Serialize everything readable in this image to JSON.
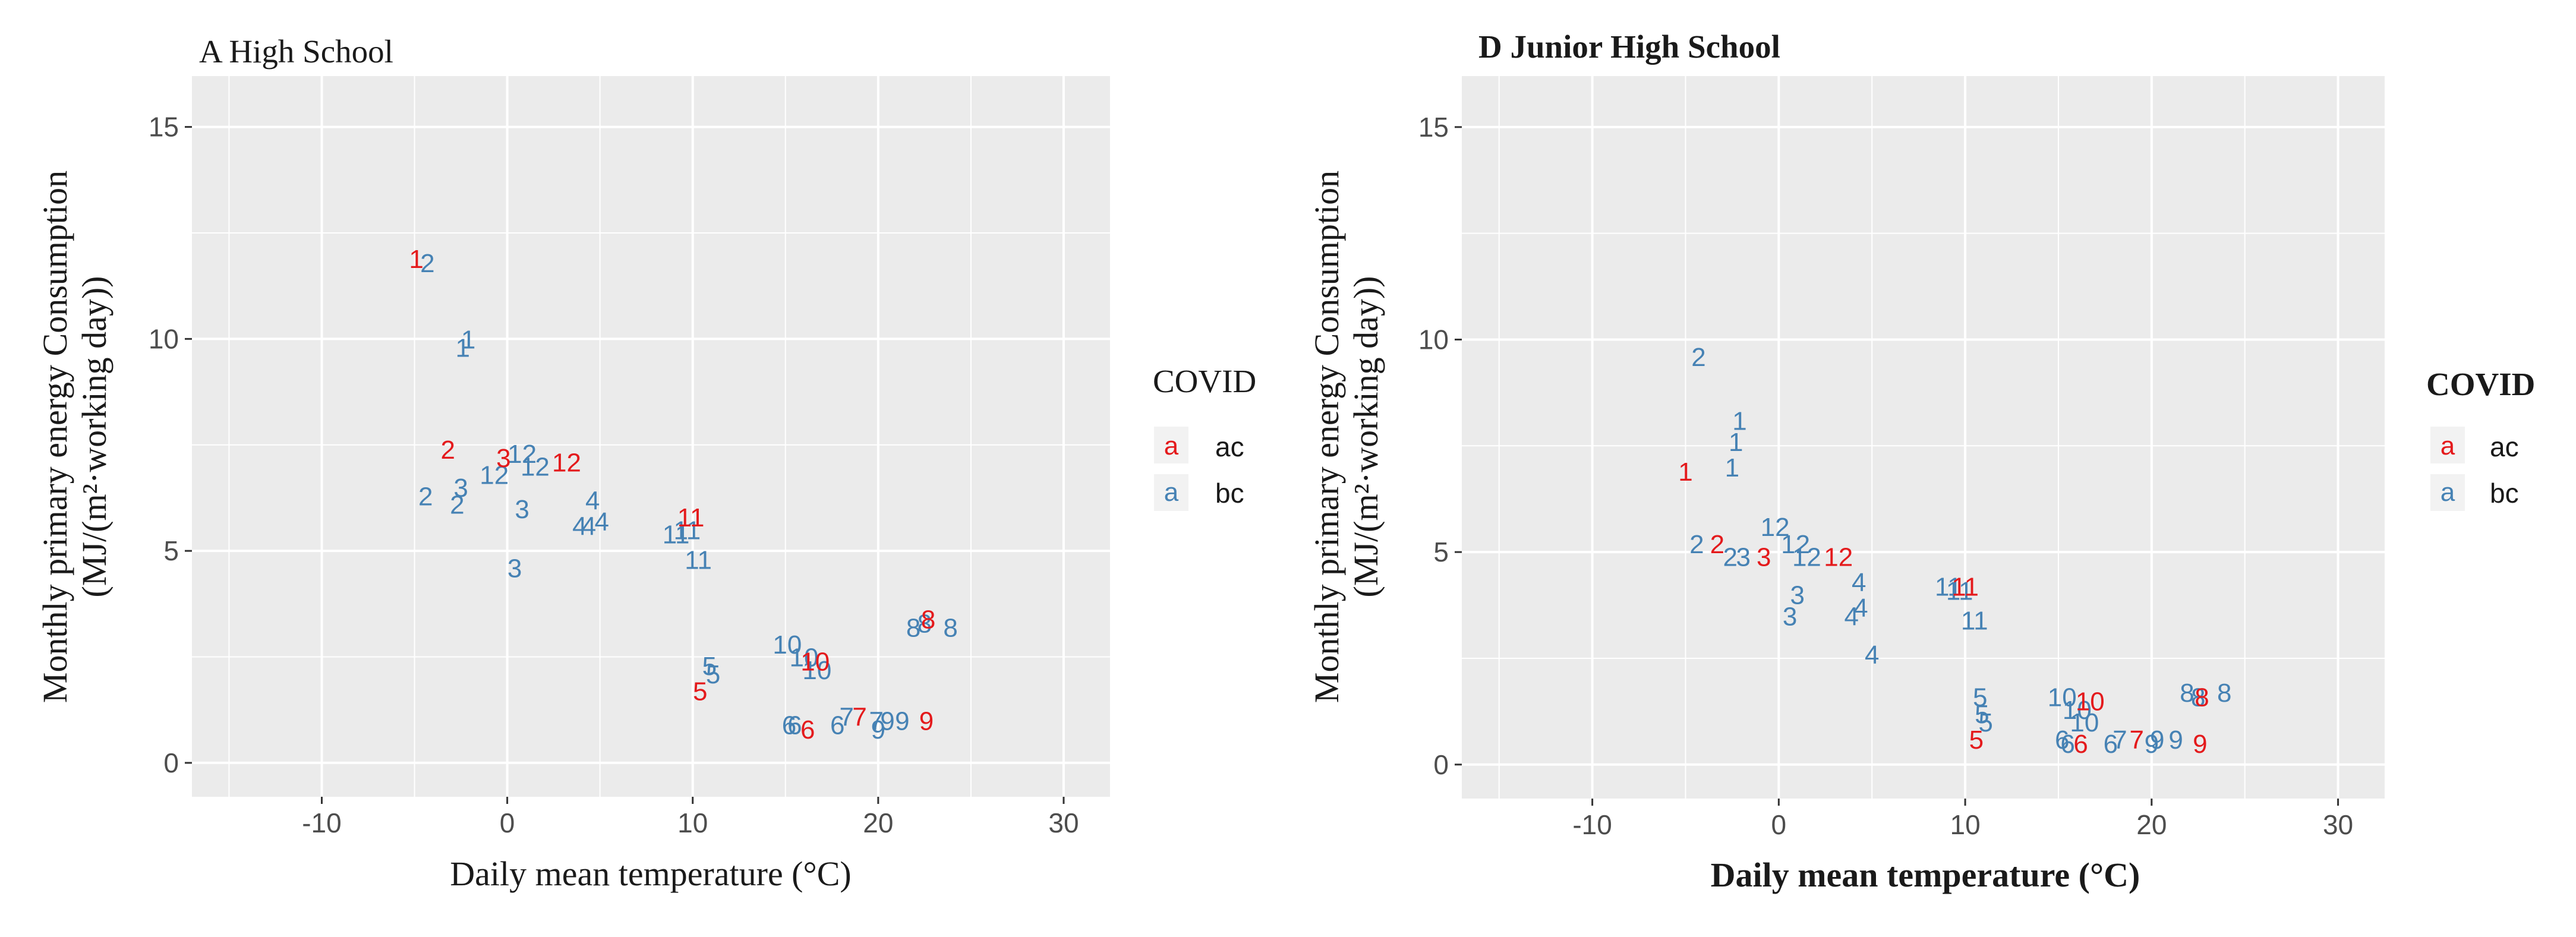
{
  "chart_data": [
    {
      "type": "scatter",
      "title": "A High School",
      "xlabel": "Daily mean temperature (°C)",
      "ylabel_line1": "Monthly primary energy Consumption",
      "ylabel_line2": "(MJ/(m²·working day))",
      "xlim": [
        -17,
        32.5
      ],
      "ylim": [
        -0.8,
        16.2
      ],
      "xticks": [
        -10,
        0,
        10,
        20,
        30
      ],
      "yticks": [
        0,
        5,
        10,
        15
      ],
      "grid": true,
      "legend": {
        "title": "COVID",
        "entries": [
          {
            "key": "a",
            "label": "ac",
            "color": "#e41a1c"
          },
          {
            "key": "a",
            "label": "bc",
            "color": "#4682b4"
          }
        ]
      },
      "series": [
        {
          "name": "ac",
          "color": "#e41a1c",
          "points": [
            {
              "x": -4.9,
              "y": 11.9,
              "label": "1"
            },
            {
              "x": -3.2,
              "y": 7.4,
              "label": "2"
            },
            {
              "x": -0.2,
              "y": 7.2,
              "label": "3"
            },
            {
              "x": 10.4,
              "y": 1.7,
              "label": "5"
            },
            {
              "x": 16.2,
              "y": 0.8,
              "label": "6"
            },
            {
              "x": 19.0,
              "y": 1.1,
              "label": "7"
            },
            {
              "x": 22.7,
              "y": 3.4,
              "label": "8"
            },
            {
              "x": 22.6,
              "y": 1.0,
              "label": "9"
            },
            {
              "x": 16.6,
              "y": 2.4,
              "label": "10"
            },
            {
              "x": 9.9,
              "y": 5.8,
              "label": "11"
            },
            {
              "x": 3.2,
              "y": 7.1,
              "label": "12"
            }
          ]
        },
        {
          "name": "bc",
          "color": "#4682b4",
          "points": [
            {
              "x": -4.3,
              "y": 11.8,
              "label": "2"
            },
            {
              "x": -2.1,
              "y": 10.0,
              "label": "1"
            },
            {
              "x": -2.4,
              "y": 9.8,
              "label": "1"
            },
            {
              "x": 0.8,
              "y": 7.3,
              "label": "12"
            },
            {
              "x": -0.7,
              "y": 6.8,
              "label": "12"
            },
            {
              "x": 1.5,
              "y": 7.0,
              "label": "12"
            },
            {
              "x": -2.5,
              "y": 6.5,
              "label": "3"
            },
            {
              "x": -4.4,
              "y": 6.3,
              "label": "2"
            },
            {
              "x": -2.7,
              "y": 6.1,
              "label": "2"
            },
            {
              "x": 0.8,
              "y": 6.0,
              "label": "3"
            },
            {
              "x": 0.4,
              "y": 4.6,
              "label": "3"
            },
            {
              "x": 4.6,
              "y": 6.2,
              "label": "4"
            },
            {
              "x": 5.1,
              "y": 5.7,
              "label": "4"
            },
            {
              "x": 3.9,
              "y": 5.6,
              "label": "4"
            },
            {
              "x": 4.4,
              "y": 5.6,
              "label": "4"
            },
            {
              "x": 9.1,
              "y": 5.4,
              "label": "11"
            },
            {
              "x": 9.7,
              "y": 5.5,
              "label": "11"
            },
            {
              "x": 10.3,
              "y": 4.8,
              "label": "11"
            },
            {
              "x": 10.9,
              "y": 2.3,
              "label": "5"
            },
            {
              "x": 11.1,
              "y": 2.1,
              "label": "5"
            },
            {
              "x": 15.1,
              "y": 2.8,
              "label": "10"
            },
            {
              "x": 16.0,
              "y": 2.5,
              "label": "10"
            },
            {
              "x": 16.7,
              "y": 2.2,
              "label": "10"
            },
            {
              "x": 15.2,
              "y": 0.9,
              "label": "6"
            },
            {
              "x": 15.5,
              "y": 0.9,
              "label": "6"
            },
            {
              "x": 17.8,
              "y": 0.9,
              "label": "6"
            },
            {
              "x": 18.3,
              "y": 1.1,
              "label": "7"
            },
            {
              "x": 19.9,
              "y": 1.0,
              "label": "7"
            },
            {
              "x": 20.0,
              "y": 0.8,
              "label": "9"
            },
            {
              "x": 20.5,
              "y": 1.0,
              "label": "9"
            },
            {
              "x": 21.3,
              "y": 1.0,
              "label": "9"
            },
            {
              "x": 21.9,
              "y": 3.2,
              "label": "8"
            },
            {
              "x": 22.5,
              "y": 3.3,
              "label": "8"
            },
            {
              "x": 23.9,
              "y": 3.2,
              "label": "8"
            }
          ]
        }
      ]
    },
    {
      "type": "scatter",
      "title": "D Junior High School",
      "xlabel": "Daily mean temperature (°C)",
      "ylabel_line1": "Monthly primary energy Consumption",
      "ylabel_line2": "(MJ/(m²·working day))",
      "xlim": [
        -17,
        32.5
      ],
      "ylim": [
        -0.8,
        16.2
      ],
      "xticks": [
        -10,
        0,
        10,
        20,
        30
      ],
      "yticks": [
        0,
        5,
        10,
        15
      ],
      "grid": true,
      "legend": {
        "title": "COVID",
        "entries": [
          {
            "key": "a",
            "label": "ac",
            "color": "#e41a1c"
          },
          {
            "key": "a",
            "label": "bc",
            "color": "#4682b4"
          }
        ]
      },
      "series": [
        {
          "name": "ac",
          "color": "#e41a1c",
          "points": [
            {
              "x": -5.0,
              "y": 6.9,
              "label": "1"
            },
            {
              "x": -3.3,
              "y": 5.2,
              "label": "2"
            },
            {
              "x": -0.8,
              "y": 4.9,
              "label": "3"
            },
            {
              "x": 10.6,
              "y": 0.6,
              "label": "5"
            },
            {
              "x": 16.2,
              "y": 0.5,
              "label": "6"
            },
            {
              "x": 19.2,
              "y": 0.6,
              "label": "7"
            },
            {
              "x": 22.7,
              "y": 1.6,
              "label": "8"
            },
            {
              "x": 22.6,
              "y": 0.5,
              "label": "9"
            },
            {
              "x": 16.7,
              "y": 1.5,
              "label": "10"
            },
            {
              "x": 10.0,
              "y": 4.2,
              "label": "11"
            },
            {
              "x": 3.2,
              "y": 4.9,
              "label": "12"
            }
          ]
        },
        {
          "name": "bc",
          "color": "#4682b4",
          "points": [
            {
              "x": -4.3,
              "y": 9.6,
              "label": "2"
            },
            {
              "x": -2.1,
              "y": 8.1,
              "label": "1"
            },
            {
              "x": -2.3,
              "y": 7.6,
              "label": "1"
            },
            {
              "x": -2.5,
              "y": 7.0,
              "label": "1"
            },
            {
              "x": -0.2,
              "y": 5.6,
              "label": "12"
            },
            {
              "x": 0.9,
              "y": 5.2,
              "label": "12"
            },
            {
              "x": 1.5,
              "y": 4.9,
              "label": "12"
            },
            {
              "x": -4.4,
              "y": 5.2,
              "label": "2"
            },
            {
              "x": -2.6,
              "y": 4.9,
              "label": "2"
            },
            {
              "x": -1.9,
              "y": 4.9,
              "label": "3"
            },
            {
              "x": 1.0,
              "y": 4.0,
              "label": "3"
            },
            {
              "x": 0.6,
              "y": 3.5,
              "label": "3"
            },
            {
              "x": 4.3,
              "y": 4.3,
              "label": "4"
            },
            {
              "x": 4.4,
              "y": 3.7,
              "label": "4"
            },
            {
              "x": 3.9,
              "y": 3.5,
              "label": "4"
            },
            {
              "x": 5.0,
              "y": 2.6,
              "label": "4"
            },
            {
              "x": 9.1,
              "y": 4.2,
              "label": "11"
            },
            {
              "x": 9.7,
              "y": 4.1,
              "label": "11"
            },
            {
              "x": 10.5,
              "y": 3.4,
              "label": "11"
            },
            {
              "x": 10.8,
              "y": 1.6,
              "label": "5"
            },
            {
              "x": 10.9,
              "y": 1.2,
              "label": "5"
            },
            {
              "x": 11.1,
              "y": 1.0,
              "label": "5"
            },
            {
              "x": 15.2,
              "y": 1.6,
              "label": "10"
            },
            {
              "x": 16.0,
              "y": 1.3,
              "label": "10"
            },
            {
              "x": 16.4,
              "y": 1.0,
              "label": "10"
            },
            {
              "x": 15.2,
              "y": 0.6,
              "label": "6"
            },
            {
              "x": 15.5,
              "y": 0.5,
              "label": "6"
            },
            {
              "x": 17.8,
              "y": 0.5,
              "label": "6"
            },
            {
              "x": 18.3,
              "y": 0.6,
              "label": "7"
            },
            {
              "x": 20.0,
              "y": 0.5,
              "label": "9"
            },
            {
              "x": 20.3,
              "y": 0.6,
              "label": "9"
            },
            {
              "x": 21.3,
              "y": 0.6,
              "label": "9"
            },
            {
              "x": 21.9,
              "y": 1.7,
              "label": "8"
            },
            {
              "x": 22.5,
              "y": 1.6,
              "label": "8"
            },
            {
              "x": 23.9,
              "y": 1.7,
              "label": "8"
            }
          ]
        }
      ]
    }
  ]
}
